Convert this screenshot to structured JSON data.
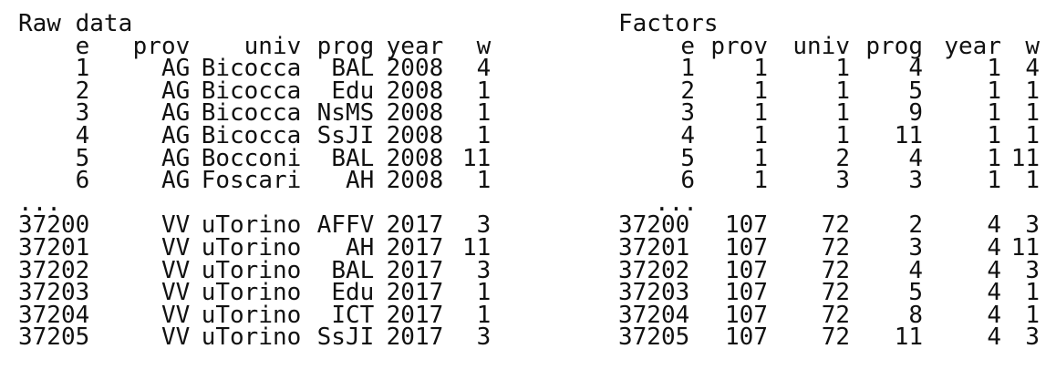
{
  "raw": {
    "title": "Raw data",
    "columns": [
      "e",
      "prov",
      "univ",
      "prog",
      "year",
      "w"
    ],
    "rows": [
      [
        "1",
        "AG",
        "Bicocca",
        "BAL",
        "2008",
        "4"
      ],
      [
        "2",
        "AG",
        "Bicocca",
        "Edu",
        "2008",
        "1"
      ],
      [
        "3",
        "AG",
        "Bicocca",
        "NsMS",
        "2008",
        "1"
      ],
      [
        "4",
        "AG",
        "Bicocca",
        "SsJI",
        "2008",
        "1"
      ],
      [
        "5",
        "AG",
        "Bocconi",
        "BAL",
        "2008",
        "11"
      ],
      [
        "6",
        "AG",
        "Foscari",
        "AH",
        "2008",
        "1"
      ]
    ],
    "ellipsis": "...",
    "rows_tail": [
      [
        "37200",
        "VV",
        "uTorino",
        "AFFV",
        "2017",
        "3"
      ],
      [
        "37201",
        "VV",
        "uTorino",
        "AH",
        "2017",
        "11"
      ],
      [
        "37202",
        "VV",
        "uTorino",
        "BAL",
        "2017",
        "3"
      ],
      [
        "37203",
        "VV",
        "uTorino",
        "Edu",
        "2017",
        "1"
      ],
      [
        "37204",
        "VV",
        "uTorino",
        "ICT",
        "2017",
        "1"
      ],
      [
        "37205",
        "VV",
        "uTorino",
        "SsJI",
        "2017",
        "3"
      ]
    ]
  },
  "factors": {
    "title": "Factors",
    "columns": [
      "e",
      "prov",
      "univ",
      "prog",
      "year",
      "w"
    ],
    "rows": [
      [
        "1",
        "1",
        "1",
        "4",
        "1",
        "4"
      ],
      [
        "2",
        "1",
        "1",
        "5",
        "1",
        "1"
      ],
      [
        "3",
        "1",
        "1",
        "9",
        "1",
        "1"
      ],
      [
        "4",
        "1",
        "1",
        "11",
        "1",
        "1"
      ],
      [
        "5",
        "1",
        "2",
        "4",
        "1",
        "11"
      ],
      [
        "6",
        "1",
        "3",
        "3",
        "1",
        "1"
      ]
    ],
    "ellipsis": "...",
    "rows_tail": [
      [
        "37200",
        "107",
        "72",
        "2",
        "4",
        "3"
      ],
      [
        "37201",
        "107",
        "72",
        "3",
        "4",
        "11"
      ],
      [
        "37202",
        "107",
        "72",
        "4",
        "4",
        "3"
      ],
      [
        "37203",
        "107",
        "72",
        "5",
        "4",
        "1"
      ],
      [
        "37204",
        "107",
        "72",
        "8",
        "4",
        "1"
      ],
      [
        "37205",
        "107",
        "72",
        "11",
        "4",
        "3"
      ]
    ]
  }
}
